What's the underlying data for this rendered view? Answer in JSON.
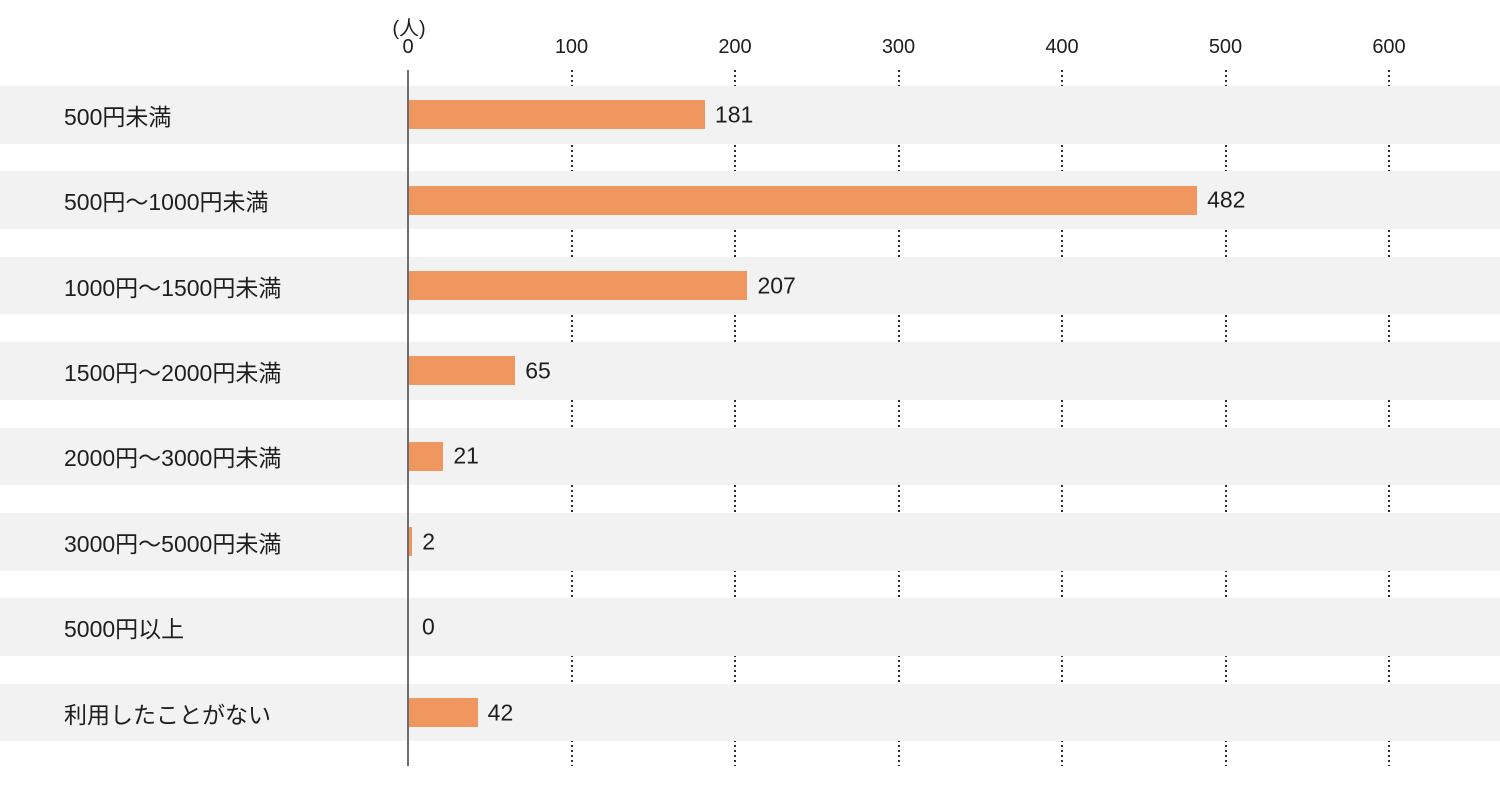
{
  "chart_data": {
    "type": "bar",
    "orientation": "horizontal",
    "unit": "(人)",
    "categories": [
      "500円未満",
      "500円〜1000円未満",
      "1000円〜1500円未満",
      "1500円〜2000円未満",
      "2000円〜3000円未満",
      "3000円〜5000円未満",
      "5000円以上",
      "利用したことがない"
    ],
    "values": [
      181,
      482,
      207,
      65,
      21,
      2,
      0,
      42
    ],
    "x_ticks": [
      0,
      100,
      200,
      300,
      400,
      500,
      600
    ],
    "xlim": [
      0,
      600
    ],
    "grid": "vertical-dotted-between-rows",
    "legend": "none",
    "bar_color": "#F0975F",
    "row_band_color": "#F2F2F2",
    "axis_line_color": "#6E6E6E",
    "grid_dot_color": "#2E2E2E",
    "text_color": "#1E1E1E",
    "background_color": "#FFFFFF"
  }
}
